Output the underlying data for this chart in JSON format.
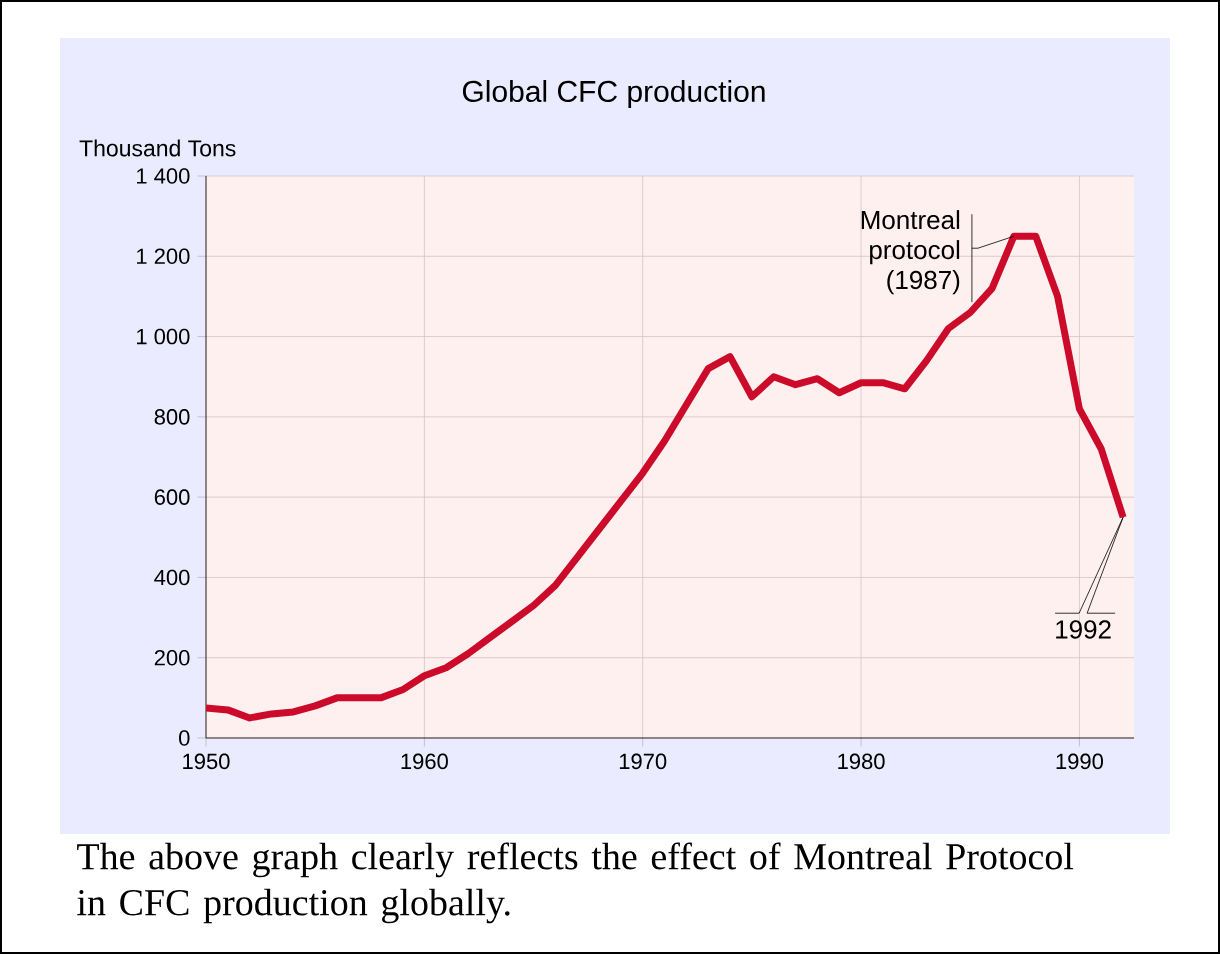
{
  "chart_data": {
    "type": "line",
    "title": "Global CFC production",
    "ylabel": "Thousand Tons",
    "x": [
      1950,
      1951,
      1952,
      1953,
      1954,
      1955,
      1956,
      1957,
      1958,
      1959,
      1960,
      1961,
      1962,
      1963,
      1964,
      1965,
      1966,
      1967,
      1968,
      1969,
      1970,
      1971,
      1972,
      1973,
      1974,
      1975,
      1976,
      1977,
      1978,
      1979,
      1980,
      1981,
      1982,
      1983,
      1984,
      1985,
      1986,
      1987,
      1988,
      1989,
      1990,
      1991,
      1992
    ],
    "series": [
      {
        "color": "#cc0a2a",
        "values": [
          75,
          70,
          50,
          60,
          65,
          80,
          100,
          100,
          100,
          120,
          155,
          175,
          210,
          250,
          290,
          330,
          380,
          450,
          520,
          590,
          660,
          740,
          830,
          920,
          950,
          850,
          900,
          880,
          895,
          860,
          885,
          885,
          870,
          940,
          1020,
          1060,
          1120,
          1250,
          1250,
          1100,
          820,
          720,
          550
        ]
      }
    ],
    "xlim": [
      1950,
      1992.5
    ],
    "xticks": [
      1950,
      1960,
      1970,
      1980,
      1990
    ],
    "ylim": [
      0,
      1400
    ],
    "yticks": [
      0,
      200,
      400,
      600,
      800,
      {
        "value": 1000,
        "label": "1 000"
      },
      {
        "value": 1200,
        "label": "1 200"
      },
      {
        "value": 1400,
        "label": "1 400"
      }
    ],
    "grid": true,
    "line_style": "solid",
    "marker": "none",
    "annotations": [
      {
        "text": "Montreal protocol (1987)",
        "x": 1987,
        "y": 1250
      },
      {
        "text": "1992",
        "x": 1992,
        "y": 550
      },
      "The above graph clearly reflects the effect of Montreal Protocol in CFC production globally."
    ]
  }
}
